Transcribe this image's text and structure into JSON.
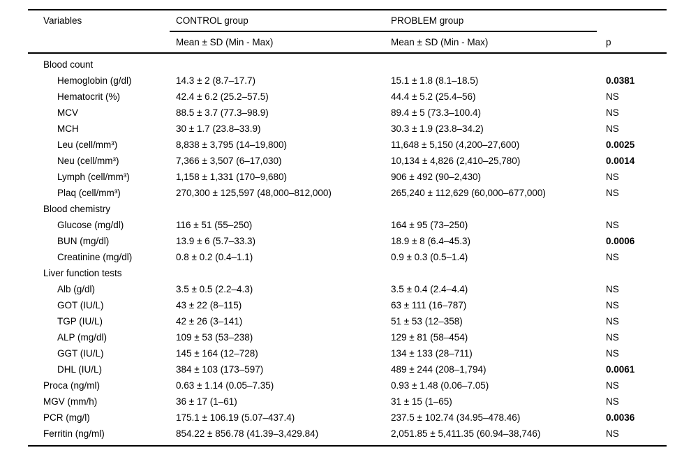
{
  "colors": {
    "background": "#ffffff",
    "text": "#000000",
    "rule": "#000000"
  },
  "table": {
    "header": {
      "variables": "Variables",
      "control_group": "CONTROL group",
      "problem_group": "PROBLEM group",
      "control_subheader": "Mean ± SD (Min - Max)",
      "problem_subheader": "Mean ± SD (Min - Max)",
      "p": "p"
    },
    "rows": [
      {
        "variable": "Blood count",
        "control": "",
        "problem": "",
        "p": "",
        "type": "section",
        "p_style": ""
      },
      {
        "variable": "Hemoglobin (g/dl)",
        "control": "14.3 ± 2 (8.7–17.7)",
        "problem": "15.1 ± 1.8 (8.1–18.5)",
        "p": "0.0381",
        "type": "item",
        "p_style": "sig"
      },
      {
        "variable": "Hematocrit (%)",
        "control": "42.4 ± 6.2 (25.2–57.5)",
        "problem": "44.4 ± 5.2 (25.4–56)",
        "p": "NS",
        "type": "item",
        "p_style": "ns"
      },
      {
        "variable": "MCV",
        "control": "88.5 ± 3.7 (77.3–98.9)",
        "problem": "89.4 ± 5 (73.3–100.4)",
        "p": "NS",
        "type": "item",
        "p_style": "ns"
      },
      {
        "variable": "MCH",
        "control": "30 ± 1.7 (23.8–33.9)",
        "problem": "30.3 ± 1.9 (23.8–34.2)",
        "p": "NS",
        "type": "item",
        "p_style": "ns"
      },
      {
        "variable": "Leu (cell/mm³)",
        "control": "8,838 ± 3,795 (14–19,800)",
        "problem": "11,648 ± 5,150 (4,200–27,600)",
        "p": "0.0025",
        "type": "item",
        "p_style": "sig"
      },
      {
        "variable": "Neu (cell/mm³)",
        "control": "7,366 ± 3,507 (6–17,030)",
        "problem": "10,134 ± 4,826 (2,410–25,780)",
        "p": "0.0014",
        "type": "item",
        "p_style": "sig"
      },
      {
        "variable": "Lymph (cell/mm³)",
        "control": "1,158 ± 1,331 (170–9,680)",
        "problem": "906 ± 492 (90–2,430)",
        "p": "NS",
        "type": "item",
        "p_style": "ns"
      },
      {
        "variable": "Plaq (cell/mm³)",
        "control": "270,300 ± 125,597 (48,000–812,000)",
        "problem": "265,240 ± 112,629 (60,000–677,000)",
        "p": "NS",
        "type": "item",
        "p_style": "ns"
      },
      {
        "variable": "Blood chemistry",
        "control": "",
        "problem": "",
        "p": "",
        "type": "section",
        "p_style": ""
      },
      {
        "variable": "Glucose (mg/dl)",
        "control": "116 ± 51 (55–250)",
        "problem": "164 ± 95 (73–250)",
        "p": "NS",
        "type": "item",
        "p_style": "ns"
      },
      {
        "variable": "BUN (mg/dl)",
        "control": "13.9 ± 6 (5.7–33.3)",
        "problem": "18.9 ± 8 (6.4–45.3)",
        "p": "0.0006",
        "type": "item",
        "p_style": "sig"
      },
      {
        "variable": "Creatinine (mg/dl)",
        "control": "0.8 ± 0.2 (0.4–1.1)",
        "problem": "0.9 ± 0.3 (0.5–1.4)",
        "p": "NS",
        "type": "item",
        "p_style": "ns"
      },
      {
        "variable": "Liver function tests",
        "control": "",
        "problem": "",
        "p": "",
        "type": "section",
        "p_style": ""
      },
      {
        "variable": "Alb (g/dl)",
        "control": "3.5 ± 0.5 (2.2–4.3)",
        "problem": "3.5 ± 0.4 (2.4–4.4)",
        "p": "NS",
        "type": "item",
        "p_style": "ns"
      },
      {
        "variable": "GOT (IU/L)",
        "control": "43 ± 22 (8–115)",
        "problem": "63 ± 111 (16–787)",
        "p": "NS",
        "type": "item",
        "p_style": "ns"
      },
      {
        "variable": "TGP (IU/L)",
        "control": "42 ± 26 (3–141)",
        "problem": "51 ± 53 (12–358)",
        "p": "NS",
        "type": "item",
        "p_style": "ns"
      },
      {
        "variable": "ALP (mg/dl)",
        "control": "109 ± 53 (53–238)",
        "problem": "129 ± 81 (58–454)",
        "p": "NS",
        "type": "item",
        "p_style": "ns"
      },
      {
        "variable": "GGT (IU/L)",
        "control": "145 ± 164 (12–728)",
        "problem": "134 ± 133 (28–711)",
        "p": "NS",
        "type": "item",
        "p_style": "ns"
      },
      {
        "variable": "DHL (IU/L)",
        "control": "384 ± 103 (173–597)",
        "problem": "489 ± 244 (208–1,794)",
        "p": "0.0061",
        "type": "item",
        "p_style": "sig"
      },
      {
        "variable": "Proca (ng/ml)",
        "control": "0.63 ± 1.14 (0.05–7.35)",
        "problem": "0.93 ± 1.48 (0.06–7.05)",
        "p": "NS",
        "type": "top",
        "p_style": "ns"
      },
      {
        "variable": "MGV (mm/h)",
        "control": "36 ± 17 (1–61)",
        "problem": "31 ± 15 (1–65)",
        "p": "NS",
        "type": "top",
        "p_style": "ns"
      },
      {
        "variable": "PCR (mg/l)",
        "control": "175.1 ± 106.19 (5.07–437.4)",
        "problem": "237.5 ± 102.74 (34.95–478.46)",
        "p": "0.0036",
        "type": "top",
        "p_style": "sig"
      },
      {
        "variable": "Ferritin (ng/ml)",
        "control": "854.22 ± 856.78 (41.39–3,429.84)",
        "problem": "2,051.85 ± 5,411.35 (60.94–38,746)",
        "p": "NS",
        "type": "top",
        "p_style": "ns"
      }
    ]
  }
}
